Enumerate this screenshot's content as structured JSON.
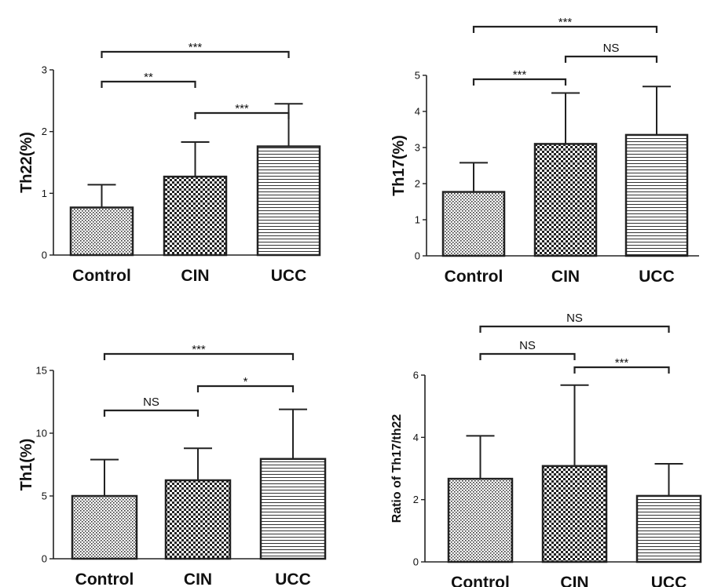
{
  "chart_data": [
    {
      "type": "bar",
      "categories": [
        "Control",
        "CIN",
        "UCC"
      ],
      "values": [
        0.77,
        1.27,
        1.76
      ],
      "errors": [
        1.14,
        1.83,
        2.45
      ],
      "ylabel": "Th22(%)",
      "ylim": [
        0,
        3
      ],
      "yticks": [
        "0",
        "1",
        "2",
        "3"
      ],
      "comparisons": [
        {
          "from": "Control",
          "to": "UCC",
          "label": "***"
        },
        {
          "from": "Control",
          "to": "CIN",
          "label": "**"
        },
        {
          "from": "CIN",
          "to": "UCC",
          "label": "***"
        }
      ]
    },
    {
      "type": "bar",
      "categories": [
        "Control",
        "CIN",
        "UCC"
      ],
      "values": [
        1.77,
        3.1,
        3.35
      ],
      "errors": [
        2.58,
        4.51,
        4.69
      ],
      "ylabel": "Th17(%)",
      "ylim": [
        0,
        5
      ],
      "yticks": [
        "0",
        "1",
        "2",
        "3",
        "4",
        "5"
      ],
      "comparisons": [
        {
          "from": "Control",
          "to": "UCC",
          "label": "***"
        },
        {
          "from": "CIN",
          "to": "UCC",
          "label": "NS"
        },
        {
          "from": "Control",
          "to": "CIN",
          "label": "***"
        }
      ]
    },
    {
      "type": "bar",
      "categories": [
        "Control",
        "CIN",
        "UCC"
      ],
      "values": [
        5.0,
        6.25,
        7.95
      ],
      "errors": [
        7.9,
        8.8,
        11.9
      ],
      "ylabel": "Th1(%)",
      "ylim": [
        0,
        15
      ],
      "yticks": [
        "0",
        "5",
        "10",
        "15"
      ],
      "comparisons": [
        {
          "from": "Control",
          "to": "UCC",
          "label": "***"
        },
        {
          "from": "CIN",
          "to": "UCC",
          "label": "*"
        },
        {
          "from": "Control",
          "to": "CIN",
          "label": "NS"
        }
      ]
    },
    {
      "type": "bar",
      "categories": [
        "Control",
        "CIN",
        "UCC"
      ],
      "values": [
        2.67,
        3.08,
        2.12
      ],
      "errors": [
        4.05,
        5.68,
        3.15
      ],
      "ylabel": "Ratio of Th17/th22",
      "ylim": [
        0,
        6
      ],
      "yticks": [
        "0",
        "2",
        "4",
        "6"
      ],
      "comparisons": [
        {
          "from": "Control",
          "to": "UCC",
          "label": "NS"
        },
        {
          "from": "Control",
          "to": "CIN",
          "label": "NS"
        },
        {
          "from": "CIN",
          "to": "UCC",
          "label": "***"
        }
      ]
    }
  ]
}
